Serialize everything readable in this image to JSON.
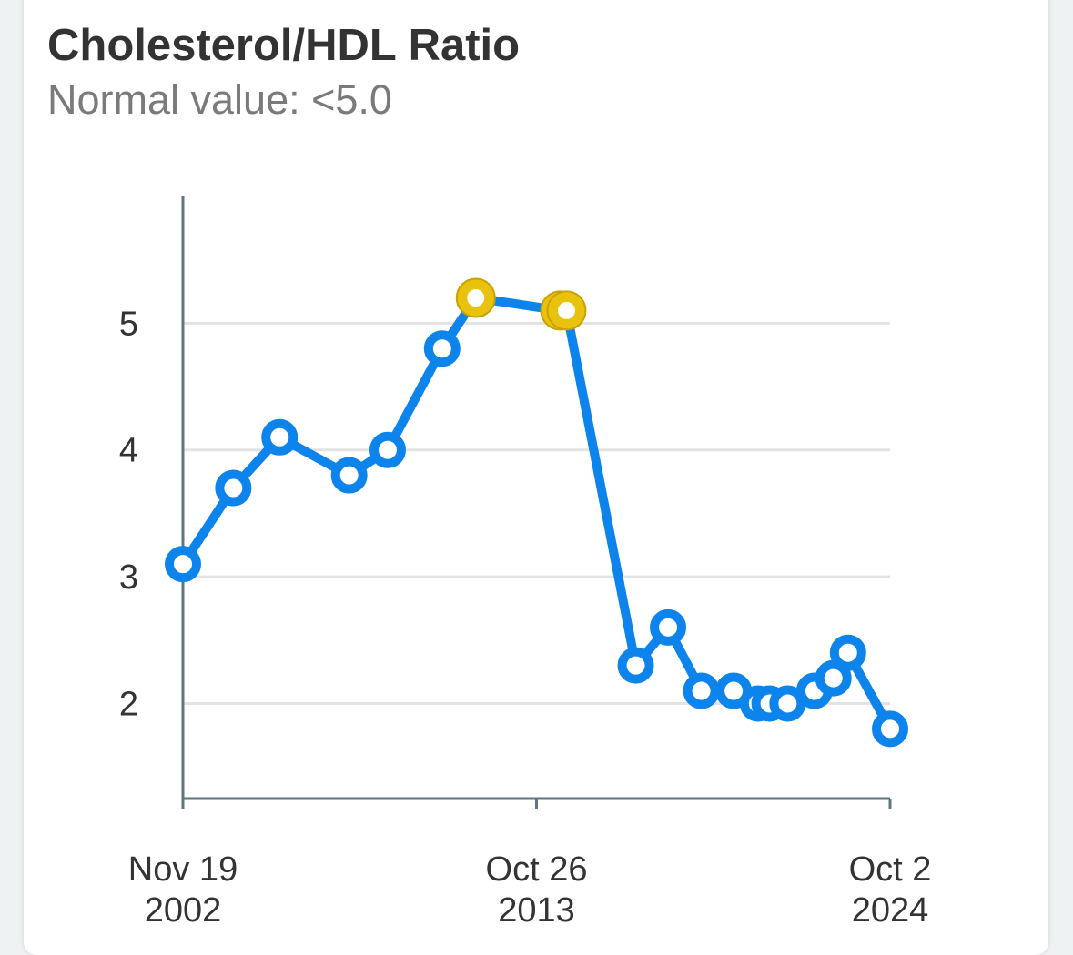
{
  "header": {
    "title": "Cholesterol/HDL Ratio",
    "subtitle": "Normal value: <5.0"
  },
  "colors": {
    "line": "#0d84ec",
    "normal_point_fill": "#ffffff",
    "high_point_fill": "#e8c20c",
    "high_point_stroke": "#c9a100",
    "grid": "#e3e3e3",
    "axis": "#5e7680"
  },
  "chart_data": {
    "type": "line",
    "title": "Cholesterol/HDL Ratio",
    "subtitle": "Normal value: <5.0",
    "normal_max": 5.0,
    "x_is_date": true,
    "xlim": [
      "2002-11-19",
      "2024-10-02"
    ],
    "ylim": [
      1.25,
      6.0
    ],
    "yticks": [
      2,
      3,
      4,
      5
    ],
    "xticks": [
      {
        "date": "2002-11-19",
        "line1": "Nov 19",
        "line2": "2002"
      },
      {
        "date": "2013-10-26",
        "line1": "Oct 26",
        "line2": "2013"
      },
      {
        "date": "2024-10-02",
        "line1": "Oct 2",
        "line2": "2024"
      }
    ],
    "grid": true,
    "legend": "none",
    "series": [
      {
        "points": [
          {
            "x": "2002-11-19",
            "y": 3.1
          },
          {
            "x": "2004-06-10",
            "y": 3.7
          },
          {
            "x": "2005-11-15",
            "y": 4.1
          },
          {
            "x": "2008-01-10",
            "y": 3.8
          },
          {
            "x": "2009-03-20",
            "y": 4.0
          },
          {
            "x": "2010-11-25",
            "y": 4.8
          },
          {
            "x": "2011-12-10",
            "y": 5.2
          },
          {
            "x": "2014-07-20",
            "y": 5.1
          },
          {
            "x": "2014-09-30",
            "y": 5.1
          },
          {
            "x": "2016-11-20",
            "y": 2.3
          },
          {
            "x": "2017-11-20",
            "y": 2.6
          },
          {
            "x": "2018-12-01",
            "y": 2.1
          },
          {
            "x": "2019-12-01",
            "y": 2.1
          },
          {
            "x": "2020-09-01",
            "y": 2.0
          },
          {
            "x": "2021-01-10",
            "y": 2.0
          },
          {
            "x": "2021-08-01",
            "y": 2.0
          },
          {
            "x": "2022-06-01",
            "y": 2.1
          },
          {
            "x": "2023-01-01",
            "y": 2.2
          },
          {
            "x": "2023-06-15",
            "y": 2.4
          },
          {
            "x": "2024-10-02",
            "y": 1.8
          }
        ]
      }
    ]
  }
}
